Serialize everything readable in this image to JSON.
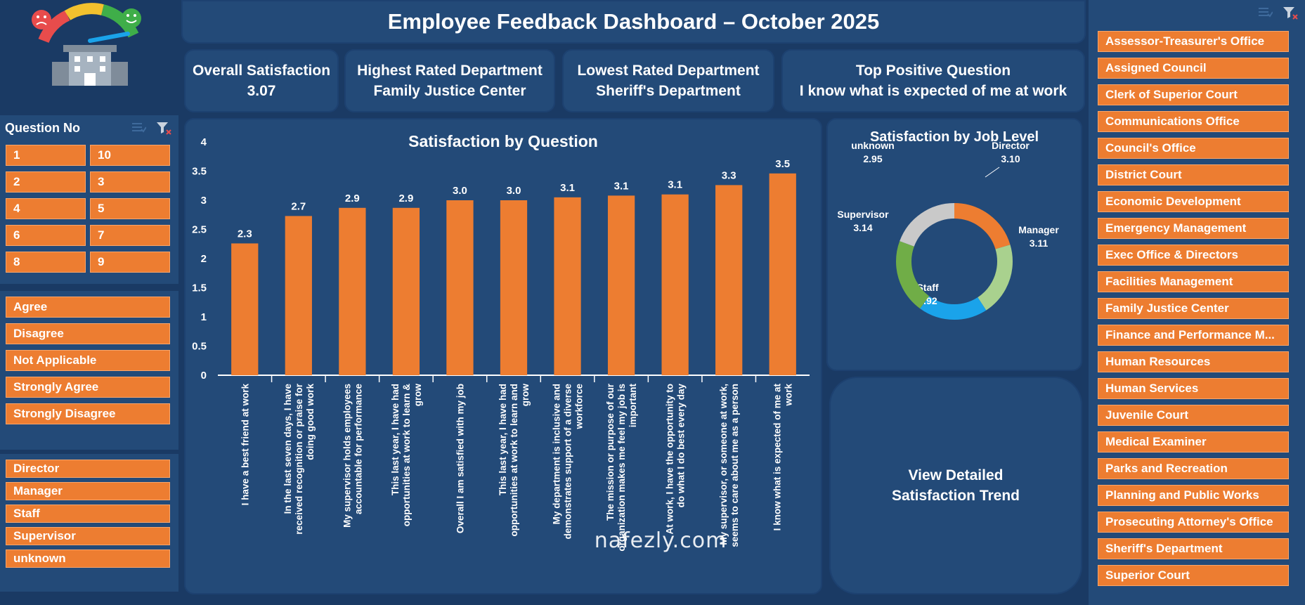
{
  "header": {
    "title": "Employee Feedback Dashboard – October 2025"
  },
  "kpis": [
    {
      "label": "Overall Satisfaction",
      "value": "3.07"
    },
    {
      "label": "Highest Rated Department",
      "value": "Family Justice Center"
    },
    {
      "label": "Lowest Rated Department",
      "value": "Sheriff's Department"
    },
    {
      "label": "Top Positive Question",
      "value": "I know what is expected of me at work"
    }
  ],
  "question_slicer": {
    "title": "Question No",
    "items": [
      "1",
      "10",
      "2",
      "3",
      "4",
      "5",
      "6",
      "7",
      "8",
      "9"
    ]
  },
  "response_slicer": {
    "items": [
      "Agree",
      "Disagree",
      "Not Applicable",
      "Strongly Agree",
      "Strongly Disagree"
    ]
  },
  "level_slicer": {
    "items": [
      "Director",
      "Manager",
      "Staff",
      "Supervisor",
      "unknown"
    ]
  },
  "department_slicer": {
    "items": [
      "Assessor-Treasurer's Office",
      "Assigned Council",
      "Clerk of Superior Court",
      "Communications Office",
      "Council's Office",
      "District Court",
      "Economic Development",
      "Emergency Management",
      "Exec Office & Directors",
      "Facilities Management",
      "Family Justice Center",
      "Finance and Performance M...",
      "Human Resources",
      "Human Services",
      "Juvenile Court",
      "Medical Examiner",
      "Parks and Recreation",
      "Planning and Public Works",
      "Prosecuting Attorney's Office",
      "Sheriff's Department",
      "Superior Court"
    ]
  },
  "trend_button": {
    "label": "View Detailed Satisfaction Trend"
  },
  "watermark": {
    "text": "nafezly.com"
  },
  "colors": {
    "bar": "#ed7d31",
    "panel": "#234a78",
    "background": "#1a3a64"
  },
  "chart_data": [
    {
      "type": "bar",
      "title": "Satisfaction by Question",
      "ylim": [
        0,
        4
      ],
      "yticks": [
        "0",
        "0.5",
        "1",
        "1.5",
        "2",
        "2.5",
        "3",
        "3.5",
        "4"
      ],
      "categories": [
        "I have a best friend at work",
        "In the last seven days, I have received recognition or praise for doing good work",
        "My supervisor holds employees accountable for performance",
        "This last year, I have had opportunities at work to learn & grow",
        "Overall I am satisfied with my job",
        "This last year, I have had opportunities at work to learn and grow",
        "My department is inclusive and demonstrates support of a diverse workforce",
        "The mission or purpose of our organization makes me feel my job is important",
        "At work, I have the opportunity to do what I do best every day",
        "My supervisor, or someone at work, seems to care about me as a person",
        "I know what is expected of me at work"
      ],
      "values": [
        2.26,
        2.73,
        2.87,
        2.87,
        3.0,
        3.0,
        3.05,
        3.08,
        3.1,
        3.26,
        3.46
      ],
      "labels": [
        "2.3",
        "2.7",
        "2.9",
        "2.9",
        "3.0",
        "3.0",
        "3.1",
        "3.1",
        "3.1",
        "3.3",
        "3.5"
      ],
      "grid": false
    },
    {
      "type": "pie",
      "title": "Satisfaction by Job Level",
      "slices": [
        {
          "name": "Director",
          "value": 3.1,
          "label": "3.10",
          "color": "#ed7d31"
        },
        {
          "name": "Manager",
          "value": 3.11,
          "label": "3.11",
          "color": "#a9d18e"
        },
        {
          "name": "Staff",
          "value": 2.92,
          "label": "2.92",
          "color": "#1aa3ea"
        },
        {
          "name": "Supervisor",
          "value": 3.14,
          "label": "3.14",
          "color": "#70ad47"
        },
        {
          "name": "unknown",
          "value": 2.95,
          "label": "2.95",
          "color": "#c9c9c9"
        }
      ]
    }
  ]
}
